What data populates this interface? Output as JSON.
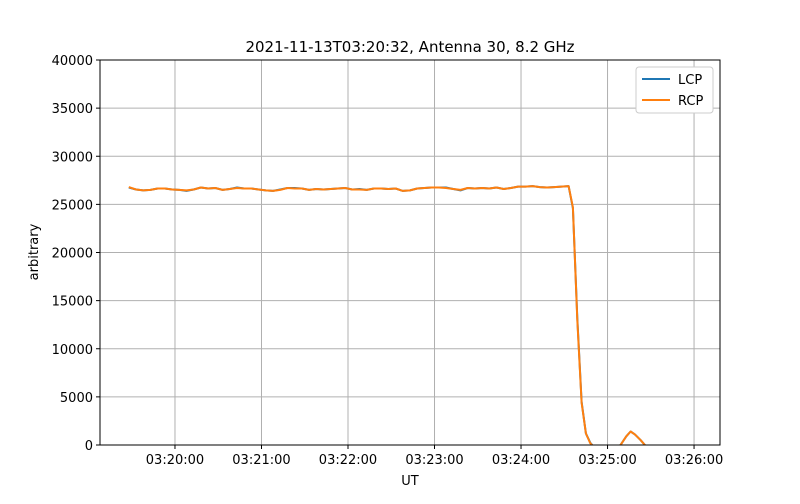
{
  "chart_data": {
    "type": "line",
    "title": "2021-11-13T03:20:32, Antenna 30, 8.2 GHz",
    "xlabel": "UT",
    "ylabel": "arbitrary",
    "xlim": [
      "03:19:08",
      "03:26:18"
    ],
    "ylim": [
      0,
      40000
    ],
    "xticks": [
      "03:20:00",
      "03:21:00",
      "03:22:00",
      "03:23:00",
      "03:24:00",
      "03:25:00",
      "03:26:00"
    ],
    "yticks": [
      0,
      5000,
      10000,
      15000,
      20000,
      25000,
      30000,
      35000,
      40000
    ],
    "grid": true,
    "legend_position": "top-right",
    "x": [
      "03:19:28",
      "03:19:33",
      "03:19:38",
      "03:19:43",
      "03:19:48",
      "03:19:53",
      "03:19:58",
      "03:20:03",
      "03:20:08",
      "03:20:13",
      "03:20:18",
      "03:20:23",
      "03:20:28",
      "03:20:33",
      "03:20:38",
      "03:20:43",
      "03:20:48",
      "03:20:53",
      "03:20:58",
      "03:21:03",
      "03:21:08",
      "03:21:13",
      "03:21:18",
      "03:21:23",
      "03:21:28",
      "03:21:33",
      "03:21:38",
      "03:21:43",
      "03:21:48",
      "03:21:53",
      "03:21:58",
      "03:22:03",
      "03:22:08",
      "03:22:13",
      "03:22:18",
      "03:22:23",
      "03:22:28",
      "03:22:33",
      "03:22:38",
      "03:22:43",
      "03:22:48",
      "03:22:53",
      "03:22:58",
      "03:23:03",
      "03:23:08",
      "03:23:13",
      "03:23:18",
      "03:23:23",
      "03:23:28",
      "03:23:33",
      "03:23:38",
      "03:23:43",
      "03:23:48",
      "03:23:53",
      "03:23:58",
      "03:24:03",
      "03:24:08",
      "03:24:13",
      "03:24:18",
      "03:24:23",
      "03:24:28",
      "03:24:33",
      "03:24:36",
      "03:24:39",
      "03:24:42",
      "03:24:45",
      "03:24:48",
      "03:24:51",
      "03:24:57",
      "03:25:03",
      "03:25:09",
      "03:25:13",
      "03:25:16",
      "03:25:19",
      "03:25:23",
      "03:25:27"
    ],
    "series": [
      {
        "name": "LCP",
        "color": "#1f77b4",
        "values": [
          26750,
          26550,
          26450,
          26500,
          26650,
          26650,
          26550,
          26500,
          26400,
          26550,
          26750,
          26650,
          26700,
          26500,
          26600,
          26750,
          26650,
          26650,
          26550,
          26450,
          26400,
          26550,
          26700,
          26700,
          26650,
          26500,
          26600,
          26550,
          26600,
          26650,
          26700,
          26550,
          26600,
          26500,
          26650,
          26650,
          26600,
          26650,
          26400,
          26450,
          26650,
          26700,
          26750,
          26750,
          26750,
          26600,
          26450,
          26700,
          26650,
          26700,
          26650,
          26750,
          26600,
          26700,
          26850,
          26850,
          26900,
          26800,
          26750,
          26800,
          26850,
          26900,
          24600,
          13200,
          4500,
          1200,
          250,
          -300,
          -600,
          -600,
          0,
          900,
          1400,
          1100,
          500,
          -200
        ]
      },
      {
        "name": "RCP",
        "color": "#ff7f0e",
        "values": [
          26800,
          26550,
          26450,
          26500,
          26650,
          26650,
          26550,
          26500,
          26450,
          26550,
          26750,
          26650,
          26700,
          26500,
          26600,
          26700,
          26650,
          26650,
          26550,
          26450,
          26400,
          26500,
          26700,
          26650,
          26650,
          26500,
          26600,
          26550,
          26600,
          26650,
          26700,
          26550,
          26550,
          26500,
          26650,
          26650,
          26600,
          26650,
          26400,
          26450,
          26650,
          26700,
          26750,
          26750,
          26700,
          26600,
          26500,
          26700,
          26650,
          26700,
          26650,
          26750,
          26600,
          26700,
          26850,
          26850,
          26900,
          26800,
          26750,
          26800,
          26850,
          26900,
          24700,
          13000,
          4400,
          1200,
          200,
          -300,
          -600,
          -600,
          0,
          900,
          1400,
          1100,
          500,
          -200
        ]
      }
    ]
  }
}
